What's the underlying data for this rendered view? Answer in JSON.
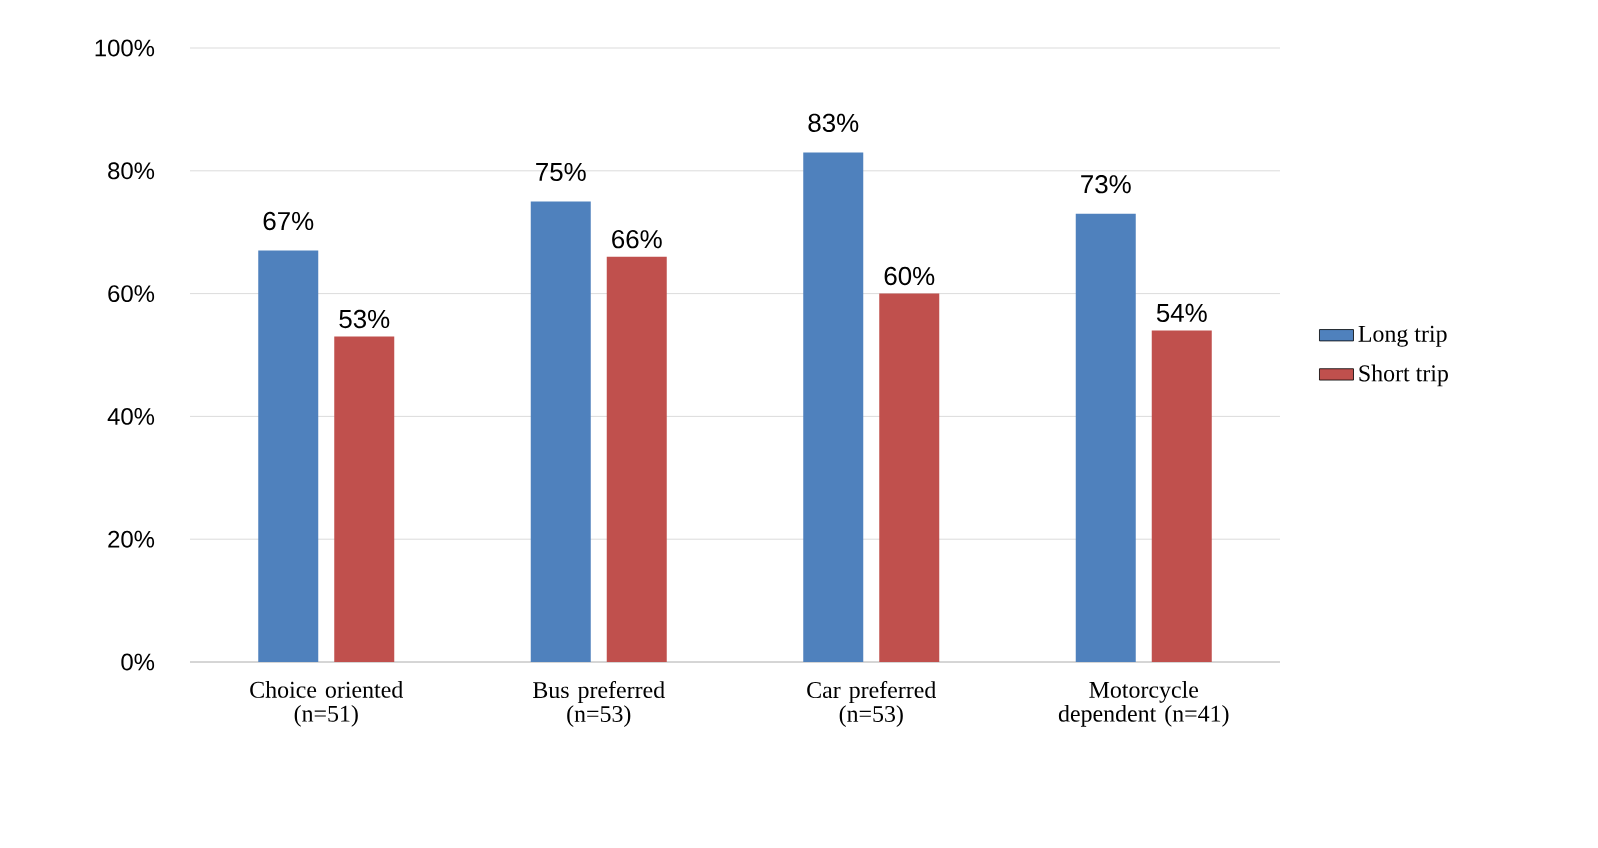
{
  "chart_data": {
    "type": "bar",
    "categories": [
      "Choice oriented (n=51)",
      "Bus preferred (n=53)",
      "Car preferred (n=53)",
      "Motorcycle dependent (n=41)"
    ],
    "series": [
      {
        "name": "Long trip",
        "color": "#4f81bd",
        "values": [
          67,
          75,
          83,
          73
        ],
        "value_labels": [
          "67%",
          "75%",
          "83%",
          "73%"
        ]
      },
      {
        "name": "Short trip",
        "color": "#c0504d",
        "values": [
          53,
          66,
          60,
          54
        ],
        "value_labels": [
          "53%",
          "66%",
          "60%",
          "54%"
        ]
      }
    ],
    "ylim": [
      0,
      100
    ],
    "yticks": [
      {
        "value": 0,
        "label": "0%"
      },
      {
        "value": 20,
        "label": "20%"
      },
      {
        "value": 40,
        "label": "40%"
      },
      {
        "value": 60,
        "label": "60%"
      },
      {
        "value": 80,
        "label": "80%"
      },
      {
        "value": 100,
        "label": "100%"
      }
    ],
    "grid": "y",
    "legend": "right"
  }
}
